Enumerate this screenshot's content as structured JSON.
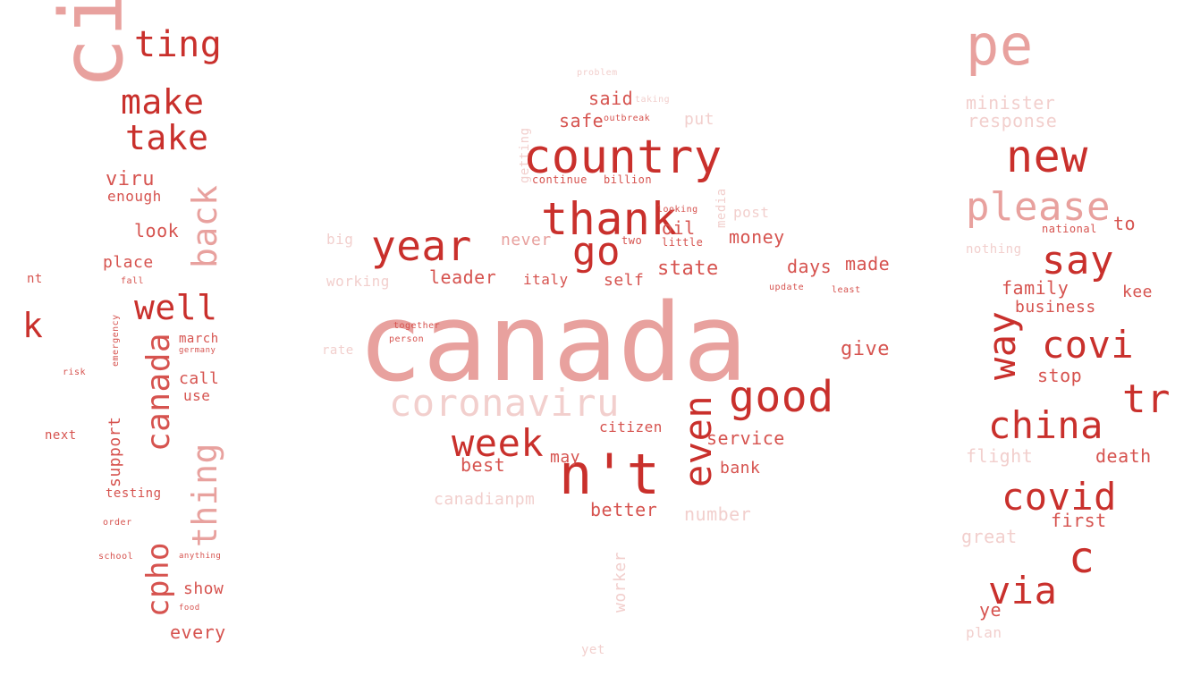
{
  "colors": {
    "strong": "#c9302c",
    "mid": "#d6534f",
    "light": "#e8a19e",
    "faint": "#f2cfcd",
    "pale": "#f8e4e3"
  },
  "left_panel": {
    "words": [
      {
        "text": "ting",
        "color": "strong"
      },
      {
        "text": "make",
        "color": "strong"
      },
      {
        "text": "take",
        "color": "strong"
      },
      {
        "text": "cintruc",
        "color": "light"
      },
      {
        "text": "viru",
        "color": "mid"
      },
      {
        "text": "enough",
        "color": "mid"
      },
      {
        "text": "back",
        "color": "light"
      },
      {
        "text": "look",
        "color": "mid"
      },
      {
        "text": "place",
        "color": "mid"
      },
      {
        "text": "well",
        "color": "strong"
      },
      {
        "text": "k",
        "color": "strong"
      },
      {
        "text": "nt",
        "color": "mid"
      },
      {
        "text": "canada",
        "color": "mid"
      },
      {
        "text": "march",
        "color": "mid"
      },
      {
        "text": "call",
        "color": "mid"
      },
      {
        "text": "use",
        "color": "mid"
      },
      {
        "text": "support",
        "color": "mid"
      },
      {
        "text": "thing",
        "color": "light"
      },
      {
        "text": "next",
        "color": "mid"
      },
      {
        "text": "testing",
        "color": "mid"
      },
      {
        "text": "cpho",
        "color": "mid"
      },
      {
        "text": "show",
        "color": "mid"
      },
      {
        "text": "every",
        "color": "mid"
      },
      {
        "text": "school",
        "color": "mid"
      },
      {
        "text": "order",
        "color": "mid"
      },
      {
        "text": "fall",
        "color": "mid"
      },
      {
        "text": "emergency",
        "color": "mid"
      },
      {
        "text": "risk",
        "color": "mid"
      },
      {
        "text": "germany",
        "color": "mid"
      },
      {
        "text": "anything",
        "color": "mid"
      },
      {
        "text": "food",
        "color": "mid"
      }
    ]
  },
  "middle_panel": {
    "words": [
      {
        "text": "problem",
        "color": "faint"
      },
      {
        "text": "said",
        "color": "mid"
      },
      {
        "text": "taking",
        "color": "faint"
      },
      {
        "text": "safe",
        "color": "mid"
      },
      {
        "text": "outbreak",
        "color": "mid"
      },
      {
        "text": "put",
        "color": "faint"
      },
      {
        "text": "getting",
        "color": "faint"
      },
      {
        "text": "country",
        "color": "strong"
      },
      {
        "text": "continue",
        "color": "mid"
      },
      {
        "text": "billion",
        "color": "mid"
      },
      {
        "text": "media",
        "color": "faint"
      },
      {
        "text": "thank",
        "color": "strong"
      },
      {
        "text": "looking",
        "color": "mid"
      },
      {
        "text": "post",
        "color": "faint"
      },
      {
        "text": "oil",
        "color": "mid"
      },
      {
        "text": "year",
        "color": "strong"
      },
      {
        "text": "go",
        "color": "strong"
      },
      {
        "text": "big",
        "color": "faint"
      },
      {
        "text": "never",
        "color": "light"
      },
      {
        "text": "two",
        "color": "mid"
      },
      {
        "text": "little",
        "color": "mid"
      },
      {
        "text": "money",
        "color": "mid"
      },
      {
        "text": "state",
        "color": "mid"
      },
      {
        "text": "days",
        "color": "mid"
      },
      {
        "text": "made",
        "color": "mid"
      },
      {
        "text": "working",
        "color": "faint"
      },
      {
        "text": "leader",
        "color": "mid"
      },
      {
        "text": "italy",
        "color": "mid"
      },
      {
        "text": "self",
        "color": "mid"
      },
      {
        "text": "update",
        "color": "mid"
      },
      {
        "text": "least",
        "color": "mid"
      },
      {
        "text": "canada",
        "color": "light"
      },
      {
        "text": "together",
        "color": "mid"
      },
      {
        "text": "person",
        "color": "mid"
      },
      {
        "text": "give",
        "color": "mid"
      },
      {
        "text": "rate",
        "color": "faint"
      },
      {
        "text": "coronaviru",
        "color": "faint"
      },
      {
        "text": "good",
        "color": "strong"
      },
      {
        "text": "week",
        "color": "strong"
      },
      {
        "text": "citizen",
        "color": "mid"
      },
      {
        "text": "n't",
        "color": "strong"
      },
      {
        "text": "even",
        "color": "strong"
      },
      {
        "text": "service",
        "color": "mid"
      },
      {
        "text": "best",
        "color": "mid"
      },
      {
        "text": "may",
        "color": "mid"
      },
      {
        "text": "bank",
        "color": "mid"
      },
      {
        "text": "canadianpm",
        "color": "faint"
      },
      {
        "text": "better",
        "color": "mid"
      },
      {
        "text": "number",
        "color": "faint"
      },
      {
        "text": "worker",
        "color": "faint"
      },
      {
        "text": "yet",
        "color": "faint"
      }
    ]
  },
  "right_panel": {
    "words": [
      {
        "text": "pe",
        "color": "light"
      },
      {
        "text": "minister",
        "color": "faint"
      },
      {
        "text": "response",
        "color": "faint"
      },
      {
        "text": "new",
        "color": "strong"
      },
      {
        "text": "please",
        "color": "light"
      },
      {
        "text": "national",
        "color": "mid"
      },
      {
        "text": "to",
        "color": "mid"
      },
      {
        "text": "nothing",
        "color": "faint"
      },
      {
        "text": "say",
        "color": "strong"
      },
      {
        "text": "family",
        "color": "mid"
      },
      {
        "text": "kee",
        "color": "mid"
      },
      {
        "text": "business",
        "color": "mid"
      },
      {
        "text": "way",
        "color": "strong"
      },
      {
        "text": "covi",
        "color": "strong"
      },
      {
        "text": "stop",
        "color": "mid"
      },
      {
        "text": "tr",
        "color": "strong"
      },
      {
        "text": "china",
        "color": "strong"
      },
      {
        "text": "flight",
        "color": "faint"
      },
      {
        "text": "death",
        "color": "mid"
      },
      {
        "text": "covid",
        "color": "strong"
      },
      {
        "text": "first",
        "color": "mid"
      },
      {
        "text": "great",
        "color": "faint"
      },
      {
        "text": "c",
        "color": "strong"
      },
      {
        "text": "via",
        "color": "strong"
      },
      {
        "text": "plan",
        "color": "faint"
      },
      {
        "text": "ye",
        "color": "mid"
      }
    ]
  }
}
